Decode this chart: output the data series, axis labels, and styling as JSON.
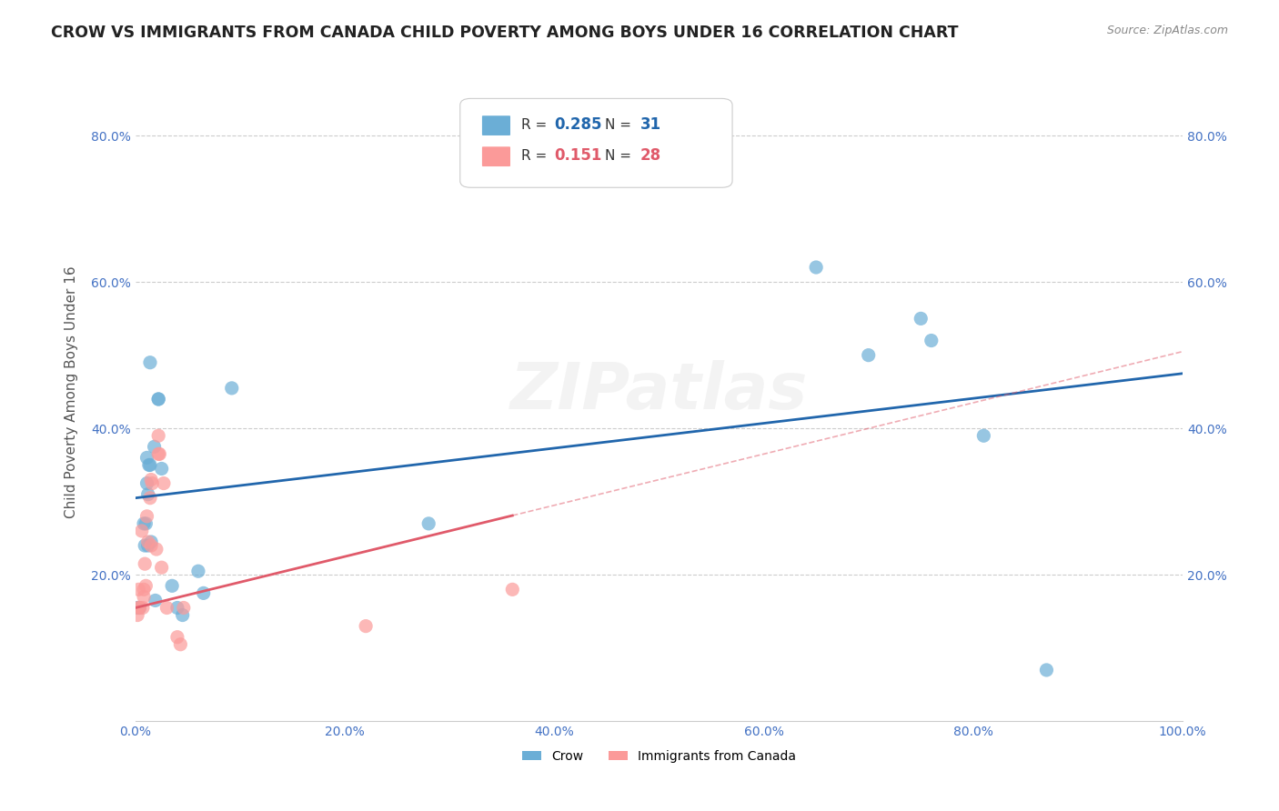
{
  "title": "CROW VS IMMIGRANTS FROM CANADA CHILD POVERTY AMONG BOYS UNDER 16 CORRELATION CHART",
  "source": "Source: ZipAtlas.com",
  "ylabel": "Child Poverty Among Boys Under 16",
  "watermark": "ZIPatlas",
  "legend_crow_R": "0.285",
  "legend_crow_N": "31",
  "legend_imm_R": "0.151",
  "legend_imm_N": "28",
  "crow_color": "#6baed6",
  "imm_color": "#fb9a99",
  "crow_line_color": "#2166ac",
  "imm_line_color": "#e05a6a",
  "crow_points_x": [
    0.002,
    0.004,
    0.008,
    0.009,
    0.01,
    0.011,
    0.011,
    0.012,
    0.012,
    0.013,
    0.014,
    0.014,
    0.015,
    0.018,
    0.019,
    0.022,
    0.022,
    0.025,
    0.035,
    0.04,
    0.045,
    0.06,
    0.065,
    0.092,
    0.28,
    0.65,
    0.7,
    0.75,
    0.76,
    0.81,
    0.87
  ],
  "crow_points_y": [
    0.155,
    0.155,
    0.27,
    0.24,
    0.27,
    0.325,
    0.36,
    0.24,
    0.31,
    0.35,
    0.35,
    0.49,
    0.245,
    0.375,
    0.165,
    0.44,
    0.44,
    0.345,
    0.185,
    0.155,
    0.145,
    0.205,
    0.175,
    0.455,
    0.27,
    0.62,
    0.5,
    0.55,
    0.52,
    0.39,
    0.07
  ],
  "imm_points_x": [
    0.002,
    0.003,
    0.003,
    0.004,
    0.006,
    0.007,
    0.008,
    0.008,
    0.009,
    0.01,
    0.011,
    0.012,
    0.014,
    0.015,
    0.015,
    0.016,
    0.02,
    0.022,
    0.022,
    0.023,
    0.025,
    0.027,
    0.03,
    0.04,
    0.043,
    0.046,
    0.22,
    0.36
  ],
  "imm_points_y": [
    0.145,
    0.155,
    0.18,
    0.155,
    0.26,
    0.155,
    0.17,
    0.18,
    0.215,
    0.185,
    0.28,
    0.245,
    0.305,
    0.33,
    0.24,
    0.325,
    0.235,
    0.365,
    0.39,
    0.365,
    0.21,
    0.325,
    0.155,
    0.115,
    0.105,
    0.155,
    0.13,
    0.18
  ],
  "crow_intercept": 0.305,
  "crow_slope": 0.17,
  "imm_intercept": 0.155,
  "imm_slope": 0.35,
  "xlim": [
    0.0,
    1.0
  ],
  "ylim": [
    0.0,
    0.9
  ],
  "grid_color": "#cccccc",
  "background": "#ffffff",
  "tick_label_color": "#4472c4"
}
